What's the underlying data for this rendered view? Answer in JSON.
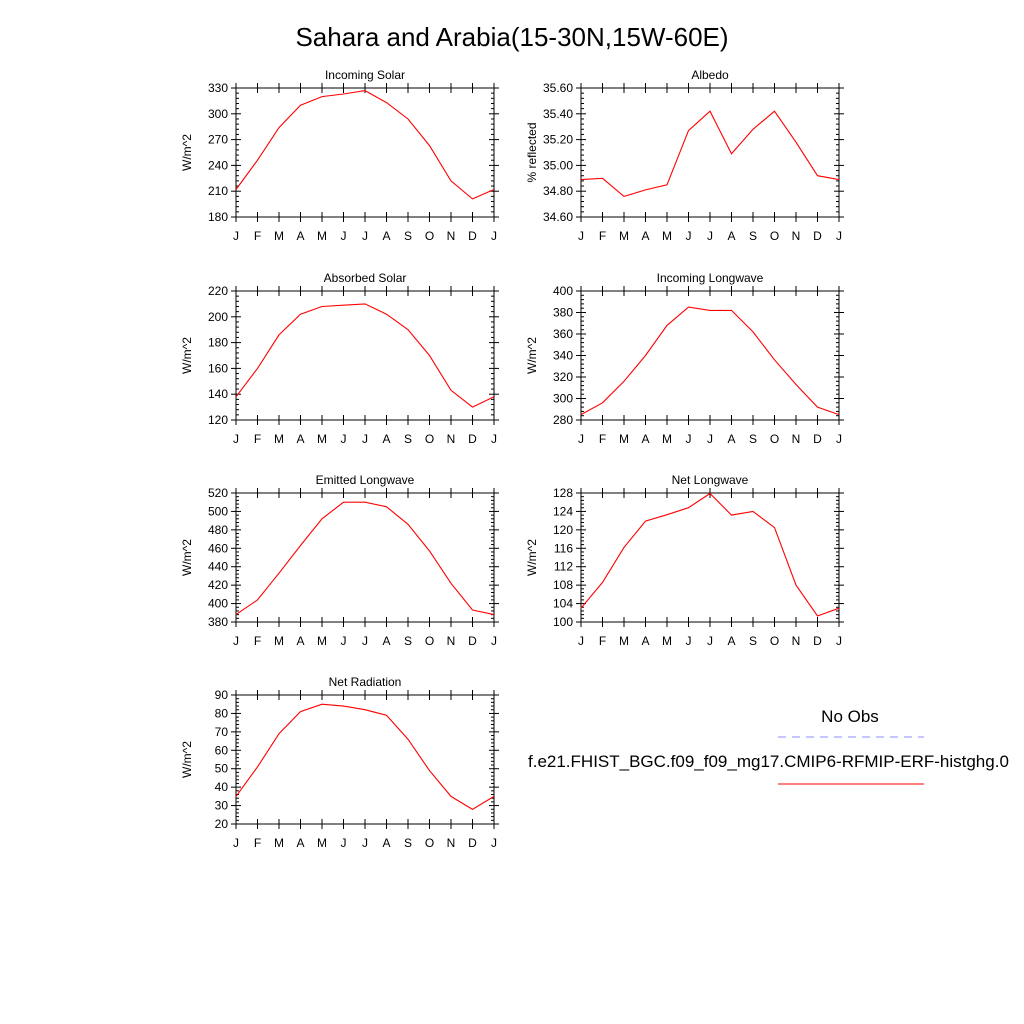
{
  "figure": {
    "title": "Sahara and Arabia(15-30N,15W-60E)"
  },
  "legend": {
    "obs_label": "No Obs",
    "obs_color": "#8c8cff",
    "model_label": "f.e21.FHIST_BGC.f09_f09_mg17.CMIP6-RFMIP-ERF-histghg.0",
    "model_color": "#ff0000"
  },
  "chart_data": [
    {
      "type": "line",
      "title": "Incoming Solar",
      "ylabel": "W/m^2",
      "categories": [
        "J",
        "F",
        "M",
        "A",
        "M",
        "J",
        "J",
        "A",
        "S",
        "O",
        "N",
        "D",
        "J"
      ],
      "ylim": [
        180,
        330
      ],
      "yticks": [
        "180",
        "210",
        "240",
        "270",
        "300",
        "330"
      ],
      "series": [
        {
          "values": [
            212,
            246,
            284,
            310,
            320,
            323,
            327,
            313,
            294,
            263,
            222,
            201,
            212
          ]
        }
      ]
    },
    {
      "type": "line",
      "title": "Albedo",
      "ylabel": "% reflected",
      "categories": [
        "J",
        "F",
        "M",
        "A",
        "M",
        "J",
        "J",
        "A",
        "S",
        "O",
        "N",
        "D",
        "J"
      ],
      "ylim": [
        34.6,
        35.6
      ],
      "yticks": [
        "34.60",
        "34.80",
        "35.00",
        "35.20",
        "35.40",
        "35.60"
      ],
      "series": [
        {
          "values": [
            34.89,
            34.9,
            34.76,
            34.81,
            34.85,
            35.27,
            35.42,
            35.09,
            35.28,
            35.42,
            35.18,
            34.92,
            34.89
          ]
        }
      ]
    },
    {
      "type": "line",
      "title": "Absorbed Solar",
      "ylabel": "W/m^2",
      "categories": [
        "J",
        "F",
        "M",
        "A",
        "M",
        "J",
        "J",
        "A",
        "S",
        "O",
        "N",
        "D",
        "J"
      ],
      "ylim": [
        120,
        220
      ],
      "yticks": [
        "120",
        "140",
        "160",
        "180",
        "200",
        "220"
      ],
      "series": [
        {
          "values": [
            138,
            160,
            186,
            202,
            208,
            209,
            210,
            202,
            190,
            170,
            143,
            130,
            138
          ]
        }
      ]
    },
    {
      "type": "line",
      "title": "Incoming Longwave",
      "ylabel": "W/m^2",
      "categories": [
        "J",
        "F",
        "M",
        "A",
        "M",
        "J",
        "J",
        "A",
        "S",
        "O",
        "N",
        "D",
        "J"
      ],
      "ylim": [
        280,
        400
      ],
      "yticks": [
        "280",
        "300",
        "320",
        "340",
        "360",
        "380",
        "400"
      ],
      "series": [
        {
          "values": [
            285,
            296,
            316,
            340,
            368,
            385,
            382,
            382,
            362,
            336,
            313,
            292,
            285
          ]
        }
      ]
    },
    {
      "type": "line",
      "title": "Emitted Longwave",
      "ylabel": "W/m^2",
      "categories": [
        "J",
        "F",
        "M",
        "A",
        "M",
        "J",
        "J",
        "A",
        "S",
        "O",
        "N",
        "D",
        "J"
      ],
      "ylim": [
        380,
        520
      ],
      "yticks": [
        "380",
        "400",
        "420",
        "440",
        "460",
        "480",
        "500",
        "520"
      ],
      "series": [
        {
          "values": [
            388,
            404,
            433,
            463,
            492,
            510,
            510,
            505,
            486,
            457,
            422,
            393,
            388
          ]
        }
      ]
    },
    {
      "type": "line",
      "title": "Net Longwave",
      "ylabel": "W/m^2",
      "categories": [
        "J",
        "F",
        "M",
        "A",
        "M",
        "J",
        "J",
        "A",
        "S",
        "O",
        "N",
        "D",
        "J"
      ],
      "ylim": [
        100,
        128
      ],
      "yticks": [
        "100",
        "104",
        "108",
        "112",
        "116",
        "120",
        "124",
        "128"
      ],
      "series": [
        {
          "values": [
            103.0,
            108.6,
            116.2,
            121.9,
            123.3,
            124.8,
            127.9,
            123.2,
            124.0,
            120.5,
            108.0,
            101.3,
            103.0
          ]
        }
      ]
    },
    {
      "type": "line",
      "title": "Net Radiation",
      "ylabel": "W/m^2",
      "categories": [
        "J",
        "F",
        "M",
        "A",
        "M",
        "J",
        "J",
        "A",
        "S",
        "O",
        "N",
        "D",
        "J"
      ],
      "ylim": [
        20,
        90
      ],
      "yticks": [
        "20",
        "30",
        "40",
        "50",
        "60",
        "70",
        "80",
        "90"
      ],
      "series": [
        {
          "values": [
            35,
            51,
            69,
            81,
            85,
            84,
            82,
            79,
            66,
            49,
            35,
            28,
            35
          ]
        }
      ]
    }
  ]
}
